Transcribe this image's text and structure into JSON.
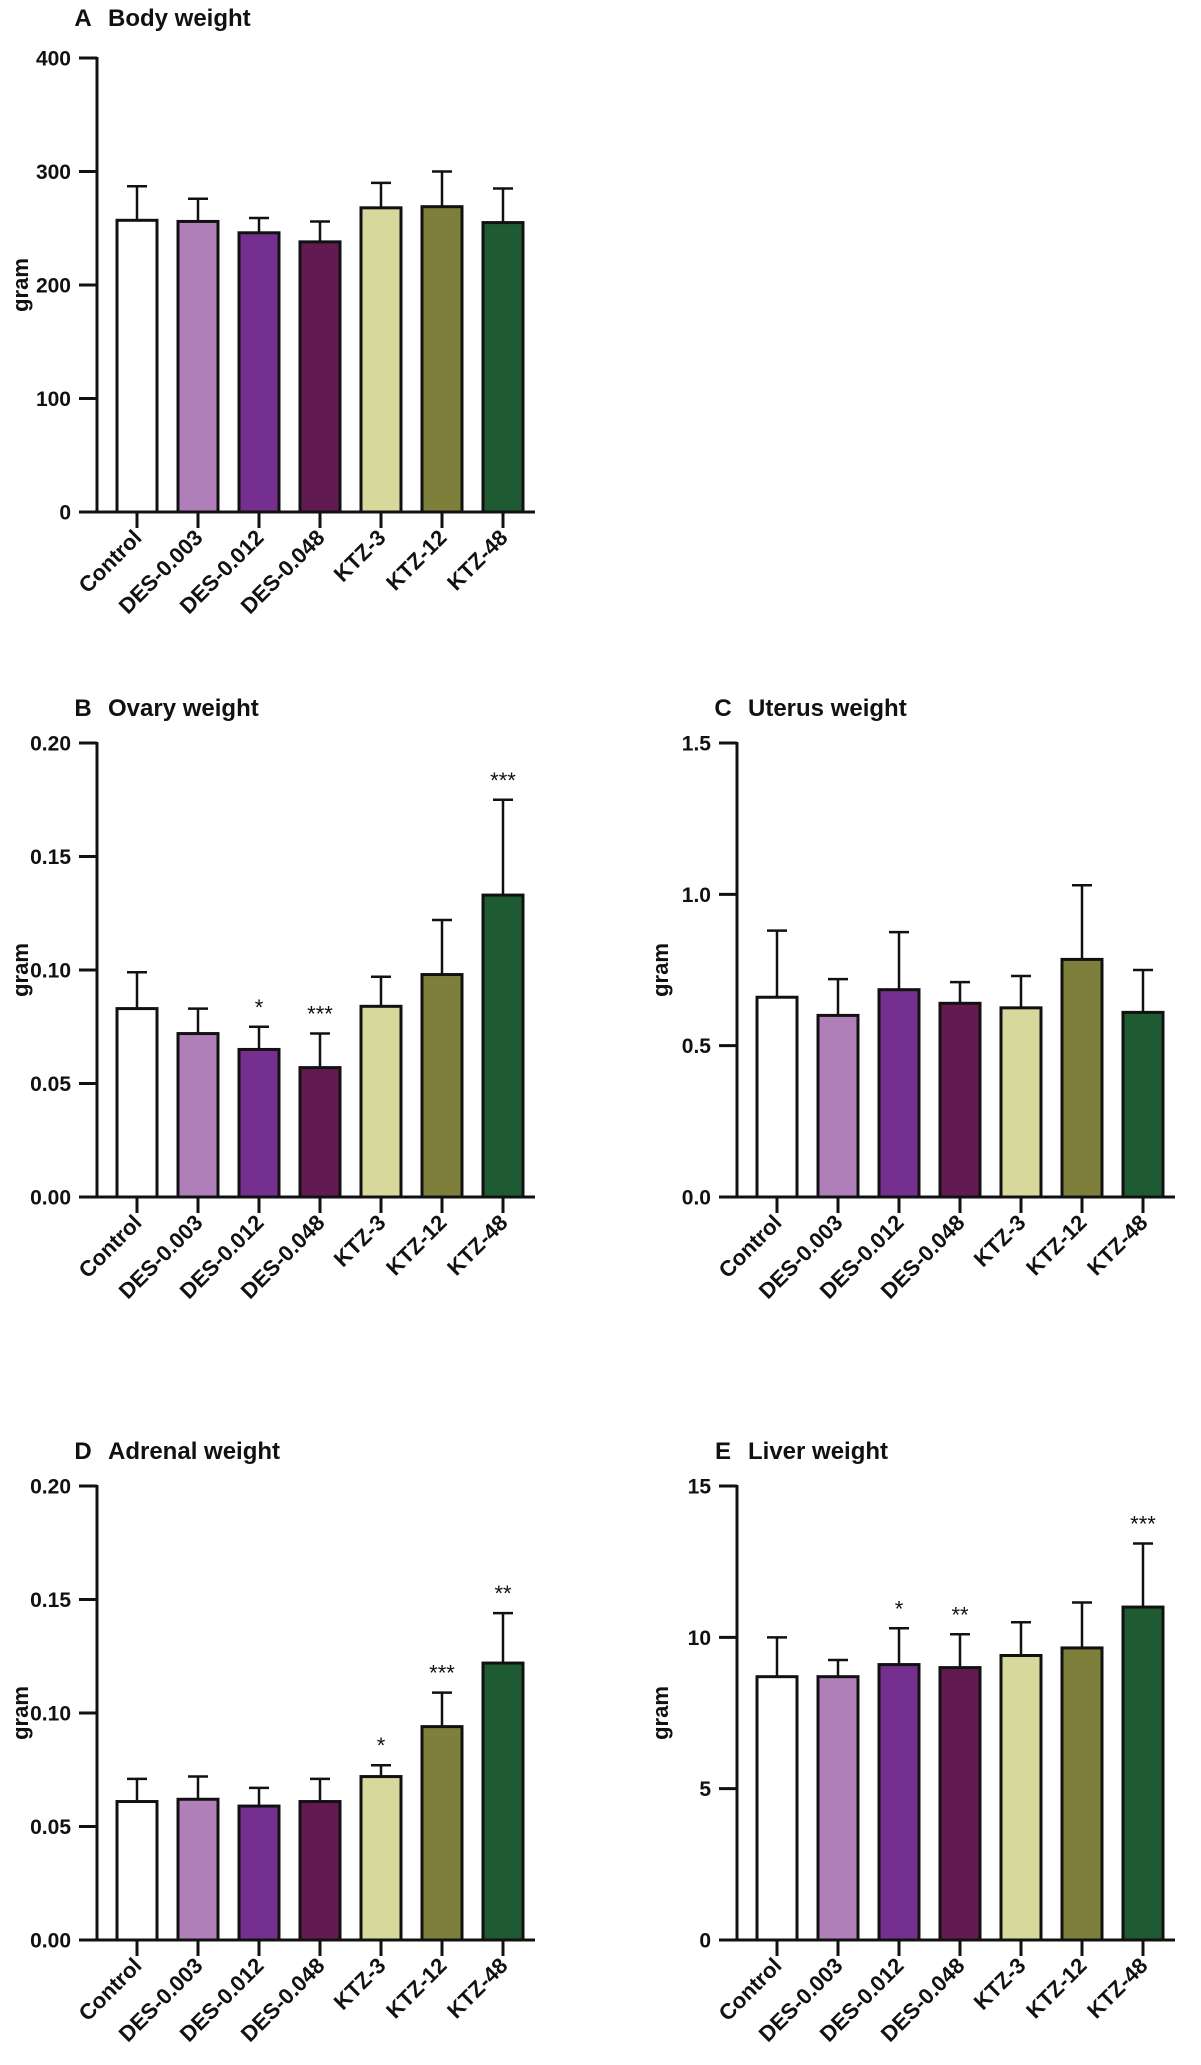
{
  "chart_data": [
    {
      "panel": "A",
      "title": "Body weight",
      "type": "bar",
      "ylabel": "gram",
      "xlabel": "",
      "ylim": [
        0,
        400
      ],
      "yticks": [
        0,
        100,
        200,
        300,
        400
      ],
      "ytick_labels": [
        "0",
        "100",
        "200",
        "300",
        "400"
      ],
      "categories": [
        "Control",
        "DES-0.003",
        "DES-0.012",
        "DES-0.048",
        "KTZ-3",
        "KTZ-12",
        "KTZ-48"
      ],
      "values": [
        257,
        256,
        246,
        238,
        268,
        269,
        255
      ],
      "errors": [
        30,
        20,
        13,
        18,
        22,
        31,
        30
      ],
      "significance": [
        "",
        "",
        "",
        "",
        "",
        "",
        ""
      ]
    },
    {
      "panel": "B",
      "title": "Ovary weight",
      "type": "bar",
      "ylabel": "gram",
      "xlabel": "",
      "ylim": [
        0,
        0.2
      ],
      "yticks": [
        0,
        0.05,
        0.1,
        0.15,
        0.2
      ],
      "ytick_labels": [
        "0.00",
        "0.05",
        "0.10",
        "0.15",
        "0.20"
      ],
      "categories": [
        "Control",
        "DES-0.003",
        "DES-0.012",
        "DES-0.048",
        "KTZ-3",
        "KTZ-12",
        "KTZ-48"
      ],
      "values": [
        0.083,
        0.072,
        0.065,
        0.057,
        0.084,
        0.098,
        0.133
      ],
      "errors": [
        0.016,
        0.011,
        0.01,
        0.015,
        0.013,
        0.024,
        0.042
      ],
      "significance": [
        "",
        "",
        "*",
        "***",
        "",
        "",
        "***"
      ]
    },
    {
      "panel": "C",
      "title": "Uterus weight",
      "type": "bar",
      "ylabel": "gram",
      "xlabel": "",
      "ylim": [
        0,
        1.5
      ],
      "yticks": [
        0,
        0.5,
        1.0,
        1.5
      ],
      "ytick_labels": [
        "0.0",
        "0.5",
        "1.0",
        "1.5"
      ],
      "categories": [
        "Control",
        "DES-0.003",
        "DES-0.012",
        "DES-0.048",
        "KTZ-3",
        "KTZ-12",
        "KTZ-48"
      ],
      "values": [
        0.66,
        0.6,
        0.685,
        0.64,
        0.625,
        0.785,
        0.61
      ],
      "errors": [
        0.22,
        0.12,
        0.19,
        0.07,
        0.105,
        0.245,
        0.14
      ],
      "significance": [
        "",
        "",
        "",
        "",
        "",
        "",
        ""
      ]
    },
    {
      "panel": "D",
      "title": "Adrenal weight",
      "type": "bar",
      "ylabel": "gram",
      "xlabel": "",
      "ylim": [
        0,
        0.2
      ],
      "yticks": [
        0,
        0.05,
        0.1,
        0.15,
        0.2
      ],
      "ytick_labels": [
        "0.00",
        "0.05",
        "0.10",
        "0.15",
        "0.20"
      ],
      "categories": [
        "Control",
        "DES-0.003",
        "DES-0.012",
        "DES-0.048",
        "KTZ-3",
        "KTZ-12",
        "KTZ-48"
      ],
      "values": [
        0.061,
        0.062,
        0.059,
        0.061,
        0.072,
        0.094,
        0.122
      ],
      "errors": [
        0.01,
        0.01,
        0.008,
        0.01,
        0.005,
        0.015,
        0.022
      ],
      "significance": [
        "",
        "",
        "",
        "",
        "*",
        "***",
        "**"
      ]
    },
    {
      "panel": "E",
      "title": "Liver weight",
      "type": "bar",
      "ylabel": "gram",
      "xlabel": "",
      "ylim": [
        0,
        15
      ],
      "yticks": [
        0,
        5,
        10,
        15
      ],
      "ytick_labels": [
        "0",
        "5",
        "10",
        "15"
      ],
      "categories": [
        "Control",
        "DES-0.003",
        "DES-0.012",
        "DES-0.048",
        "KTZ-3",
        "KTZ-12",
        "KTZ-48"
      ],
      "values": [
        8.7,
        8.7,
        9.1,
        9.0,
        9.4,
        9.65,
        11.0
      ],
      "errors": [
        1.3,
        0.55,
        1.2,
        1.1,
        1.1,
        1.5,
        2.1
      ],
      "significance": [
        "",
        "",
        "*",
        "**",
        "",
        "",
        "***"
      ]
    }
  ],
  "colors": {
    "bars": [
      "#ffffff",
      "#b07fba",
      "#742f8f",
      "#621b52",
      "#d7d89c",
      "#7f7f3c",
      "#1f5b32"
    ],
    "stroke": "#111111"
  }
}
